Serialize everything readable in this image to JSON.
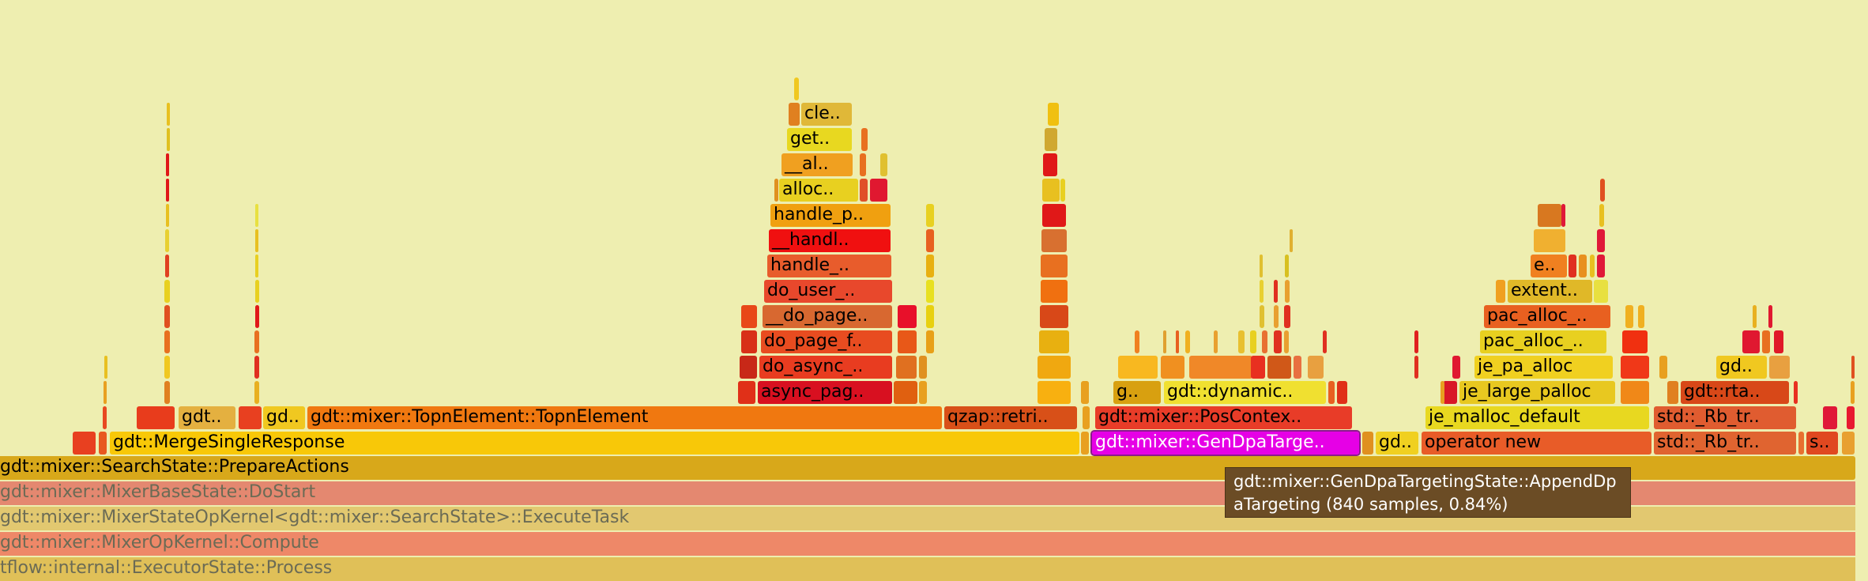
{
  "palette": {
    "background": "#eeeeb0",
    "highlight": "#e600e6",
    "tooltip_bg": "#6b4c25"
  },
  "frames": {
    "mid": [
      "gdt::mixer::SearchState::PrepareActions",
      "gdt::MergeSingleResponse",
      "gdt..",
      "gd..",
      "gdt::mixer::TopnElement::TopnElement",
      "qzap::retri..",
      "gdt::mixer::PosContex..",
      "gdt::mixer::GenDpaTarge..",
      "gd..",
      "operator new",
      "std::_Rb_tr..",
      "std::_Rb_tr..",
      "s.."
    ],
    "upper": [
      "async_pag..",
      "do_async_..",
      "do_page_f..",
      "__do_page..",
      "do_user_..",
      "handle_..",
      "__handl..",
      "handle_p..",
      "alloc..",
      "__al..",
      "get..",
      "cle..",
      "g..",
      "gdt::dynamic..",
      "je_malloc_default",
      "je_large_palloc",
      "je_pa_alloc",
      "pac_alloc_..",
      "pac_alloc_..",
      "extent..",
      "e..",
      "gdt::rta..",
      "gd.."
    ],
    "stack": [
      "gdt::mixer::MixerBaseState::DoStart",
      "gdt::mixer::MixerStateOpKernel<gdt::mixer::SearchState>::ExecuteTask",
      "gdt::mixer::MixerOpKernel::Compute",
      "tflow::internal::ExecutorState::Process"
    ]
  },
  "tooltip": {
    "text": "gdt::mixer::GenDpaTargetingState::AppendDpaTargeting (840 samples, 0.84%)"
  }
}
